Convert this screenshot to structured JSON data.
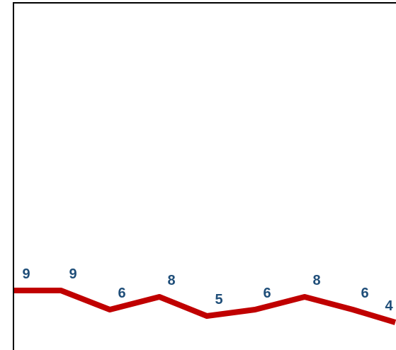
{
  "chart_data": {
    "type": "line",
    "title": "",
    "xlabel": "",
    "ylabel": "",
    "x": [
      1,
      2,
      3,
      4,
      5,
      6,
      7,
      8,
      9
    ],
    "values": [
      9,
      9,
      6,
      8,
      5,
      6,
      8,
      6,
      4
    ],
    "value_labels": [
      "9",
      "9",
      "6",
      "8",
      "5",
      "6",
      "8",
      "6",
      "4"
    ],
    "ylim": [
      0,
      60
    ],
    "grid": false,
    "legend": "none",
    "line_color": "#C00000",
    "label_color": "#1F4E79",
    "frame_color": "#000000"
  }
}
